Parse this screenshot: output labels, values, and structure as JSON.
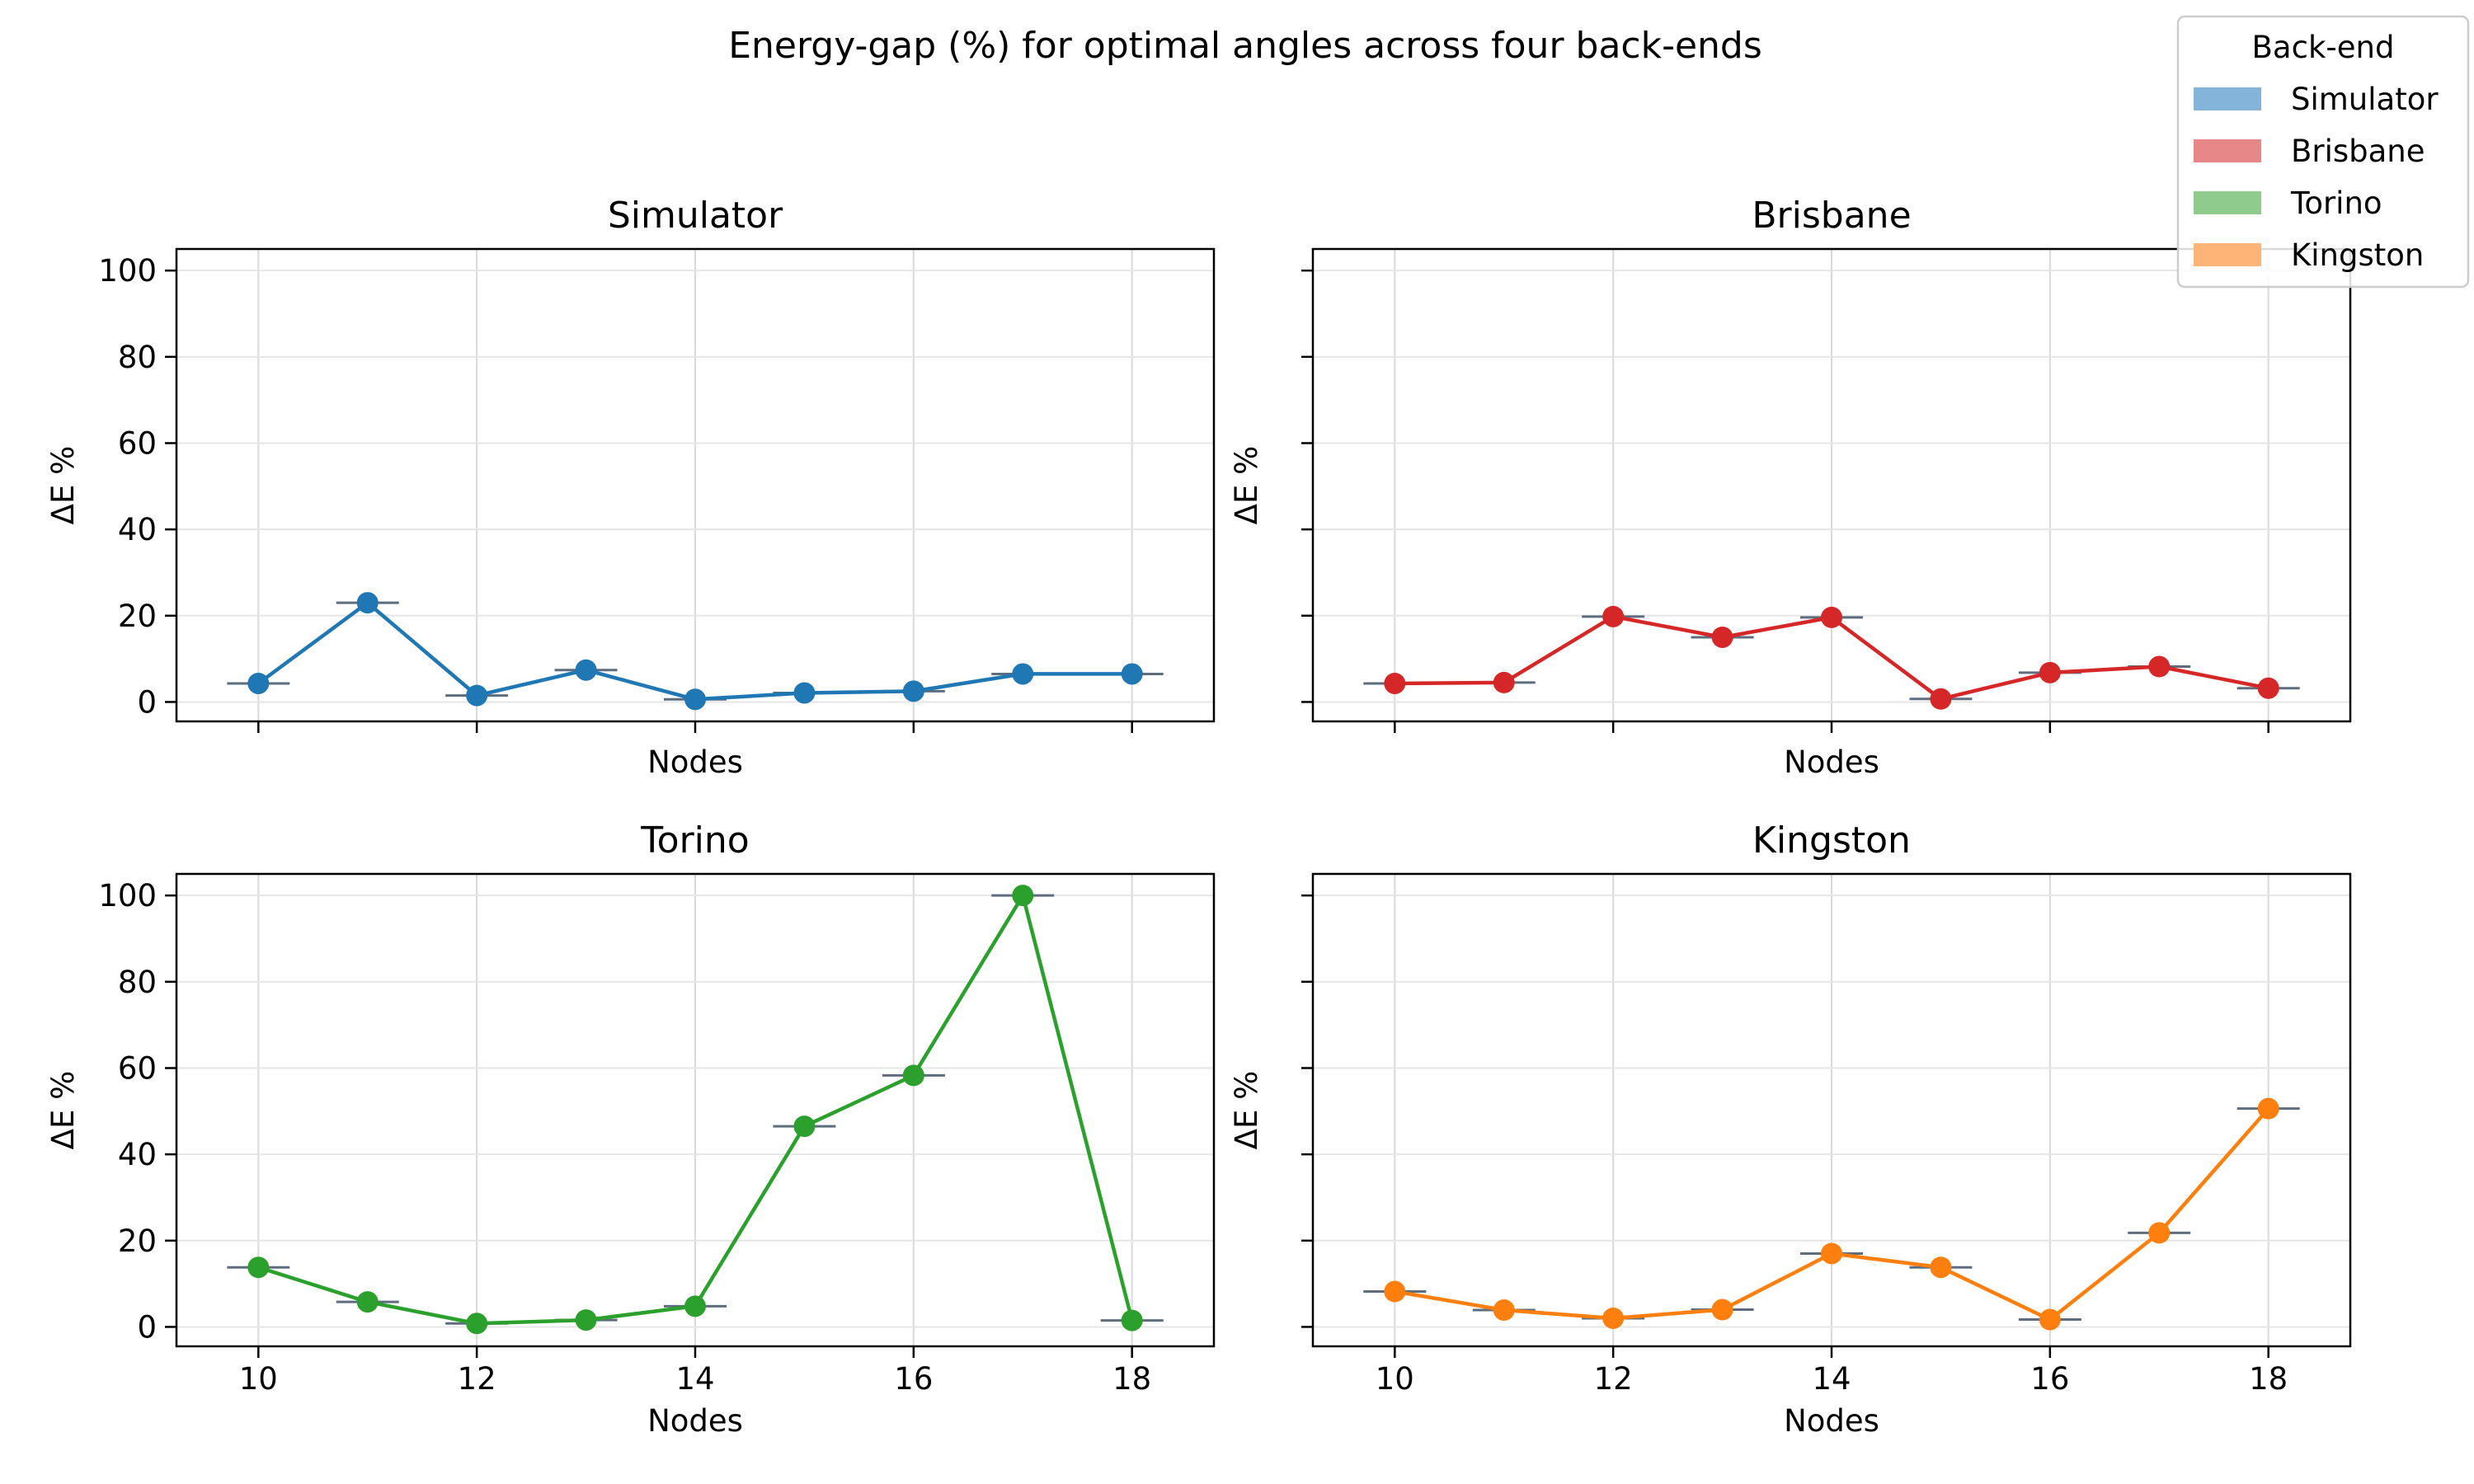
{
  "figure_title": "Energy-gap (%) for optimal angles across four back-ends",
  "legend": {
    "title": "Back-end",
    "items": [
      {
        "label": "Simulator",
        "color": "#84b4da"
      },
      {
        "label": "Brisbane",
        "color": "#e88787"
      },
      {
        "label": "Torino",
        "color": "#90cb8e"
      },
      {
        "label": "Kingston",
        "color": "#ffb477"
      }
    ]
  },
  "chart_data": [
    {
      "type": "line",
      "title": "Simulator",
      "xlabel": "Nodes",
      "ylabel": "ΔE %",
      "color": "#1f77b4",
      "x": [
        10,
        11,
        12,
        13,
        14,
        15,
        16,
        17,
        18
      ],
      "values": [
        4.3,
        23.0,
        1.5,
        7.4,
        0.6,
        2.1,
        2.5,
        6.5,
        6.5
      ],
      "xlim": [
        9.25,
        18.75
      ],
      "ylim": [
        -4.5,
        105
      ],
      "xticks": [
        "10",
        "12",
        "14",
        "16",
        "18"
      ],
      "yticks": [
        "0",
        "20",
        "40",
        "60",
        "80",
        "100"
      ],
      "grid": true
    },
    {
      "type": "line",
      "title": "Brisbane",
      "xlabel": "Nodes",
      "ylabel": "ΔE %",
      "color": "#d62728",
      "x": [
        10,
        11,
        12,
        13,
        14,
        15,
        16,
        17,
        18
      ],
      "values": [
        4.3,
        4.5,
        19.8,
        15.0,
        19.6,
        0.7,
        6.8,
        8.2,
        3.2
      ],
      "xlim": [
        9.25,
        18.75
      ],
      "ylim": [
        -4.5,
        105
      ],
      "xticks": [
        "10",
        "12",
        "14",
        "16",
        "18"
      ],
      "yticks": [
        "0",
        "20",
        "40",
        "60",
        "80",
        "100"
      ],
      "grid": true
    },
    {
      "type": "line",
      "title": "Torino",
      "xlabel": "Nodes",
      "ylabel": "ΔE %",
      "color": "#2ca02c",
      "x": [
        10,
        11,
        12,
        13,
        14,
        15,
        16,
        17,
        18
      ],
      "values": [
        13.8,
        5.8,
        0.8,
        1.6,
        4.8,
        46.5,
        58.3,
        100.0,
        1.5
      ],
      "xlim": [
        9.25,
        18.75
      ],
      "ylim": [
        -4.5,
        105
      ],
      "xticks": [
        "10",
        "12",
        "14",
        "16",
        "18"
      ],
      "yticks": [
        "0",
        "20",
        "40",
        "60",
        "80",
        "100"
      ],
      "grid": true
    },
    {
      "type": "line",
      "title": "Kingston",
      "xlabel": "Nodes",
      "ylabel": "ΔE %",
      "color": "#ff7f0e",
      "x": [
        10,
        11,
        12,
        13,
        14,
        15,
        16,
        17,
        18
      ],
      "values": [
        8.2,
        3.9,
        2.0,
        4.0,
        17.0,
        13.8,
        1.7,
        21.8,
        50.6
      ],
      "xlim": [
        9.25,
        18.75
      ],
      "ylim": [
        -4.5,
        105
      ],
      "xticks": [
        "10",
        "12",
        "14",
        "16",
        "18"
      ],
      "yticks": [
        "0",
        "20",
        "40",
        "60",
        "80",
        "100"
      ],
      "grid": true
    }
  ]
}
